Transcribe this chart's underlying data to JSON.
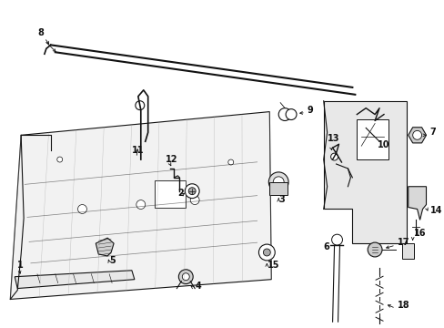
{
  "bg_color": "#ffffff",
  "line_color": "#111111",
  "panel_color": "#f0f0f0",
  "bracket_color": "#e8e8e8",
  "label_fontsize": 7,
  "parts": [
    "1",
    "2",
    "3",
    "4",
    "5",
    "6",
    "7",
    "8",
    "9",
    "10",
    "11",
    "12",
    "13",
    "14",
    "15",
    "16",
    "17",
    "18"
  ]
}
